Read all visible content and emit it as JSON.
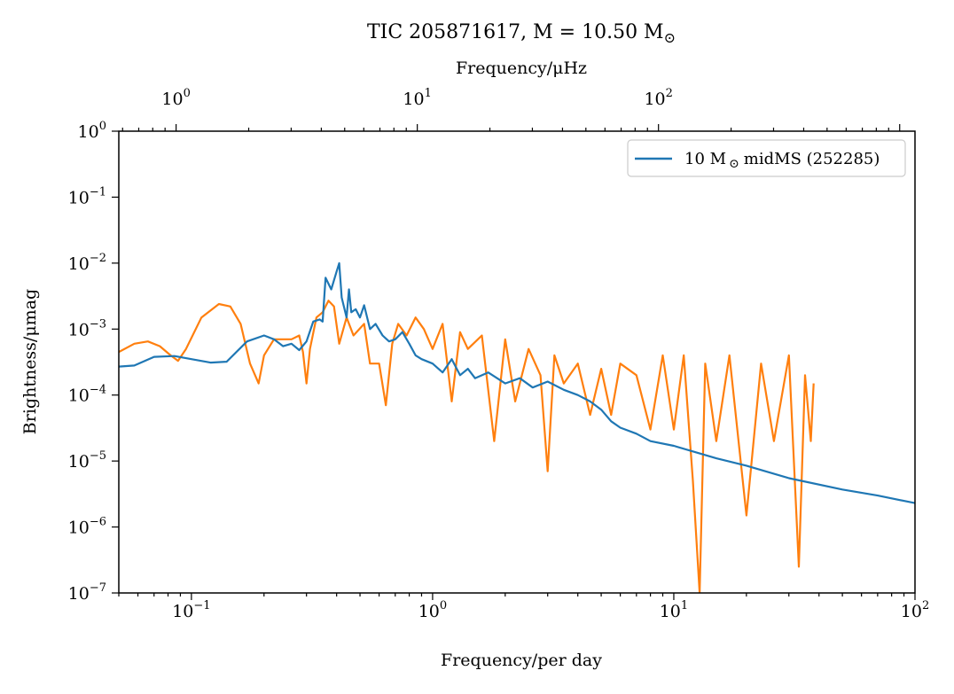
{
  "chart_data": {
    "type": "line",
    "title": "TIC 205871617, M = 10.50 M",
    "title_symbol": "⊙",
    "xlabel": "Frequency/per day",
    "ylabel": "Brightness/μmag",
    "top_xlabel": "Frequency/μHz",
    "x_scale": "log",
    "y_scale": "log",
    "xlim": [
      0.05,
      100
    ],
    "ylim": [
      1e-07,
      1
    ],
    "top_xlim": [
      0.5787,
      1157.4
    ],
    "grid": false,
    "legend_position": "upper right",
    "x_ticks": [
      {
        "value": 0.1,
        "label": "10",
        "exp": "−1"
      },
      {
        "value": 1,
        "label": "10",
        "exp": "0"
      },
      {
        "value": 10,
        "label": "10",
        "exp": "1"
      },
      {
        "value": 100,
        "label": "10",
        "exp": "2"
      }
    ],
    "top_ticks": [
      {
        "value": 1,
        "label": "10",
        "exp": "0"
      },
      {
        "value": 10,
        "label": "10",
        "exp": "1"
      },
      {
        "value": 100,
        "label": "10",
        "exp": "2"
      }
    ],
    "y_ticks": [
      {
        "value": 1,
        "label": "10",
        "exp": "0"
      },
      {
        "value": 0.1,
        "label": "10",
        "exp": "−1"
      },
      {
        "value": 0.01,
        "label": "10",
        "exp": "−2"
      },
      {
        "value": 0.001,
        "label": "10",
        "exp": "−3"
      },
      {
        "value": 0.0001,
        "label": "10",
        "exp": "−4"
      },
      {
        "value": 1e-05,
        "label": "10",
        "exp": "−5"
      },
      {
        "value": 1e-06,
        "label": "10",
        "exp": "−6"
      },
      {
        "value": 1e-07,
        "label": "10",
        "exp": "−7"
      }
    ],
    "series": [
      {
        "name": "10 M midMS (252285)",
        "legend_prefix": "10 M",
        "legend_symbol": "⊙",
        "legend_suffix": "midMS (252285)",
        "color": "#1f77b4",
        "points": [
          [
            0.05,
            0.00027
          ],
          [
            0.058,
            0.00028
          ],
          [
            0.07,
            0.00038
          ],
          [
            0.085,
            0.00039
          ],
          [
            0.1,
            0.00035
          ],
          [
            0.12,
            0.00031
          ],
          [
            0.14,
            0.00032
          ],
          [
            0.17,
            0.00065
          ],
          [
            0.2,
            0.0008
          ],
          [
            0.22,
            0.0007
          ],
          [
            0.24,
            0.00055
          ],
          [
            0.26,
            0.0006
          ],
          [
            0.28,
            0.00048
          ],
          [
            0.3,
            0.00065
          ],
          [
            0.32,
            0.0013
          ],
          [
            0.34,
            0.0014
          ],
          [
            0.35,
            0.0013
          ],
          [
            0.36,
            0.006
          ],
          [
            0.38,
            0.004
          ],
          [
            0.4,
            0.0075
          ],
          [
            0.41,
            0.01
          ],
          [
            0.42,
            0.003
          ],
          [
            0.44,
            0.0015
          ],
          [
            0.45,
            0.004
          ],
          [
            0.46,
            0.0018
          ],
          [
            0.48,
            0.002
          ],
          [
            0.5,
            0.0015
          ],
          [
            0.52,
            0.0023
          ],
          [
            0.55,
            0.001
          ],
          [
            0.58,
            0.0012
          ],
          [
            0.62,
            0.0008
          ],
          [
            0.66,
            0.00065
          ],
          [
            0.7,
            0.0007
          ],
          [
            0.75,
            0.0009
          ],
          [
            0.8,
            0.0006
          ],
          [
            0.85,
            0.0004
          ],
          [
            0.9,
            0.00035
          ],
          [
            1.0,
            0.0003
          ],
          [
            1.1,
            0.00022
          ],
          [
            1.2,
            0.00035
          ],
          [
            1.3,
            0.0002
          ],
          [
            1.4,
            0.00025
          ],
          [
            1.5,
            0.00018
          ],
          [
            1.7,
            0.00022
          ],
          [
            2.0,
            0.00015
          ],
          [
            2.3,
            0.00018
          ],
          [
            2.6,
            0.00013
          ],
          [
            3.0,
            0.00016
          ],
          [
            3.5,
            0.00012
          ],
          [
            4.0,
            0.0001
          ],
          [
            4.5,
            8e-05
          ],
          [
            5.0,
            6e-05
          ],
          [
            5.5,
            4e-05
          ],
          [
            6.0,
            3.2e-05
          ],
          [
            7.0,
            2.6e-05
          ],
          [
            8.0,
            2e-05
          ],
          [
            10.0,
            1.7e-05
          ],
          [
            15.0,
            1.1e-05
          ],
          [
            20.0,
            8.5e-06
          ],
          [
            30.0,
            5.5e-06
          ],
          [
            50.0,
            3.7e-06
          ],
          [
            70.0,
            3e-06
          ],
          [
            100.0,
            2.3e-06
          ]
        ]
      },
      {
        "name": "",
        "color": "#ff7f0e",
        "points": [
          [
            0.05,
            0.00045
          ],
          [
            0.058,
            0.0006
          ],
          [
            0.066,
            0.00065
          ],
          [
            0.074,
            0.00055
          ],
          [
            0.082,
            0.0004
          ],
          [
            0.088,
            0.00033
          ],
          [
            0.095,
            0.0005
          ],
          [
            0.11,
            0.0015
          ],
          [
            0.13,
            0.0024
          ],
          [
            0.145,
            0.0022
          ],
          [
            0.16,
            0.0012
          ],
          [
            0.175,
            0.0003
          ],
          [
            0.19,
            0.00015
          ],
          [
            0.2,
            0.0004
          ],
          [
            0.22,
            0.0007
          ],
          [
            0.24,
            0.0007
          ],
          [
            0.26,
            0.0007
          ],
          [
            0.28,
            0.0008
          ],
          [
            0.29,
            0.00045
          ],
          [
            0.3,
            0.00015
          ],
          [
            0.31,
            0.0005
          ],
          [
            0.33,
            0.0015
          ],
          [
            0.35,
            0.0018
          ],
          [
            0.37,
            0.0027
          ],
          [
            0.39,
            0.0022
          ],
          [
            0.41,
            0.0006
          ],
          [
            0.44,
            0.0015
          ],
          [
            0.47,
            0.0008
          ],
          [
            0.52,
            0.0012
          ],
          [
            0.55,
            0.0003
          ],
          [
            0.6,
            0.0003
          ],
          [
            0.64,
            7e-05
          ],
          [
            0.68,
            0.0006
          ],
          [
            0.72,
            0.0012
          ],
          [
            0.78,
            0.0008
          ],
          [
            0.85,
            0.0015
          ],
          [
            0.92,
            0.001
          ],
          [
            1.0,
            0.0005
          ],
          [
            1.1,
            0.0012
          ],
          [
            1.2,
            8e-05
          ],
          [
            1.3,
            0.0009
          ],
          [
            1.4,
            0.0005
          ],
          [
            1.6,
            0.0008
          ],
          [
            1.8,
            2e-05
          ],
          [
            2.0,
            0.0007
          ],
          [
            2.2,
            8e-05
          ],
          [
            2.5,
            0.0005
          ],
          [
            2.8,
            0.0002
          ],
          [
            3.0,
            7e-06
          ],
          [
            3.2,
            0.0004
          ],
          [
            3.5,
            0.00015
          ],
          [
            4.0,
            0.0003
          ],
          [
            4.5,
            5e-05
          ],
          [
            5.0,
            0.00025
          ],
          [
            5.5,
            5e-05
          ],
          [
            6.0,
            0.0003
          ],
          [
            7.0,
            0.0002
          ],
          [
            8.0,
            3e-05
          ],
          [
            9.0,
            0.0004
          ],
          [
            10.0,
            3e-05
          ],
          [
            11.0,
            0.0004
          ],
          [
            12.0,
            5e-06
          ],
          [
            12.8,
            1e-07
          ],
          [
            13.5,
            0.0003
          ],
          [
            15.0,
            2e-05
          ],
          [
            17.0,
            0.0004
          ],
          [
            20.0,
            1.5e-06
          ],
          [
            23.0,
            0.0003
          ],
          [
            26.0,
            2e-05
          ],
          [
            30.0,
            0.0004
          ],
          [
            33.0,
            2.5e-07
          ],
          [
            35.0,
            0.0002
          ],
          [
            37.0,
            2e-05
          ],
          [
            38.0,
            0.00015
          ]
        ]
      }
    ]
  }
}
